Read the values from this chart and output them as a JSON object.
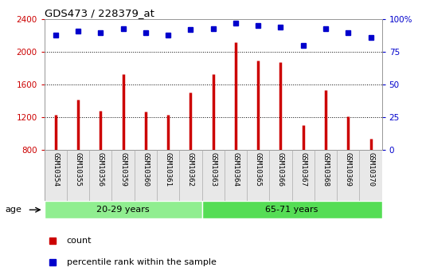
{
  "title": "GDS473 / 228379_at",
  "samples": [
    "GSM10354",
    "GSM10355",
    "GSM10356",
    "GSM10359",
    "GSM10360",
    "GSM10361",
    "GSM10362",
    "GSM10363",
    "GSM10364",
    "GSM10365",
    "GSM10366",
    "GSM10367",
    "GSM10368",
    "GSM10369",
    "GSM10370"
  ],
  "counts": [
    1230,
    1420,
    1280,
    1730,
    1270,
    1230,
    1500,
    1730,
    2120,
    1890,
    1870,
    1100,
    1530,
    1210,
    940
  ],
  "percentiles": [
    88,
    91,
    90,
    93,
    90,
    88,
    92,
    93,
    97,
    95,
    94,
    80,
    93,
    90,
    86
  ],
  "groups": [
    {
      "label": "20-29 years",
      "start": 0,
      "end": 7,
      "color": "#90ee90"
    },
    {
      "label": "65-71 years",
      "start": 7,
      "end": 15,
      "color": "#55dd55"
    }
  ],
  "bar_color": "#cc0000",
  "dot_color": "#0000cc",
  "ylim_left": [
    800,
    2400
  ],
  "yticks_left": [
    800,
    1200,
    1600,
    2000,
    2400
  ],
  "ylim_right": [
    0,
    100
  ],
  "yticks_right": [
    0,
    25,
    50,
    75,
    100
  ],
  "ylabel_left_color": "#cc0000",
  "ylabel_right_color": "#0000cc",
  "grid_color": "#000000",
  "age_label": "age",
  "legend_count_label": "count",
  "legend_pct_label": "percentile rank within the sample"
}
